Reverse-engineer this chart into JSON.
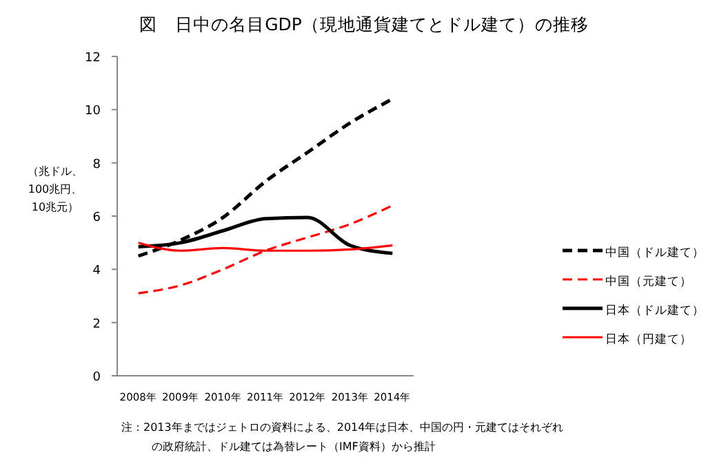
{
  "chart_data": {
    "type": "line",
    "title": "図　日中の名目GDP（現地通貨建てとドル建て）の推移",
    "ylabel": "（兆ドル、\n100兆円、\n10兆元）",
    "categories": [
      "2008年",
      "2009年",
      "2010年",
      "2011年",
      "2012年",
      "2013年",
      "2014年"
    ],
    "series": [
      {
        "name": "中国（ドル建て）",
        "color": "#000000",
        "line_style": "dashed",
        "values": [
          4.5,
          5.1,
          5.95,
          7.3,
          8.4,
          9.5,
          10.4
        ]
      },
      {
        "name": "中国（元建て）",
        "color": "#ff0000",
        "line_style": "dashed",
        "values": [
          3.1,
          3.4,
          4.0,
          4.7,
          5.2,
          5.7,
          6.4
        ]
      },
      {
        "name": "日本（ドル建て）",
        "color": "#000000",
        "line_style": "solid",
        "values": [
          4.85,
          5.0,
          5.45,
          5.9,
          5.95,
          4.9,
          4.6
        ]
      },
      {
        "name": "日本（円建て）",
        "color": "#ff0000",
        "line_style": "solid",
        "values": [
          5.0,
          4.7,
          4.8,
          4.7,
          4.7,
          4.75,
          4.9
        ]
      }
    ],
    "ylim": [
      0,
      12
    ],
    "yticks": [
      0,
      2,
      4,
      6,
      8,
      10,
      12
    ],
    "grid": false,
    "legend": "right",
    "annotations": [
      "注：2013年まではジェトロの資料による、2014年は日本、中国の円・元建てはそれぞれの政府統計、ドル建ては為替レート（IMF資料）から推計"
    ]
  }
}
